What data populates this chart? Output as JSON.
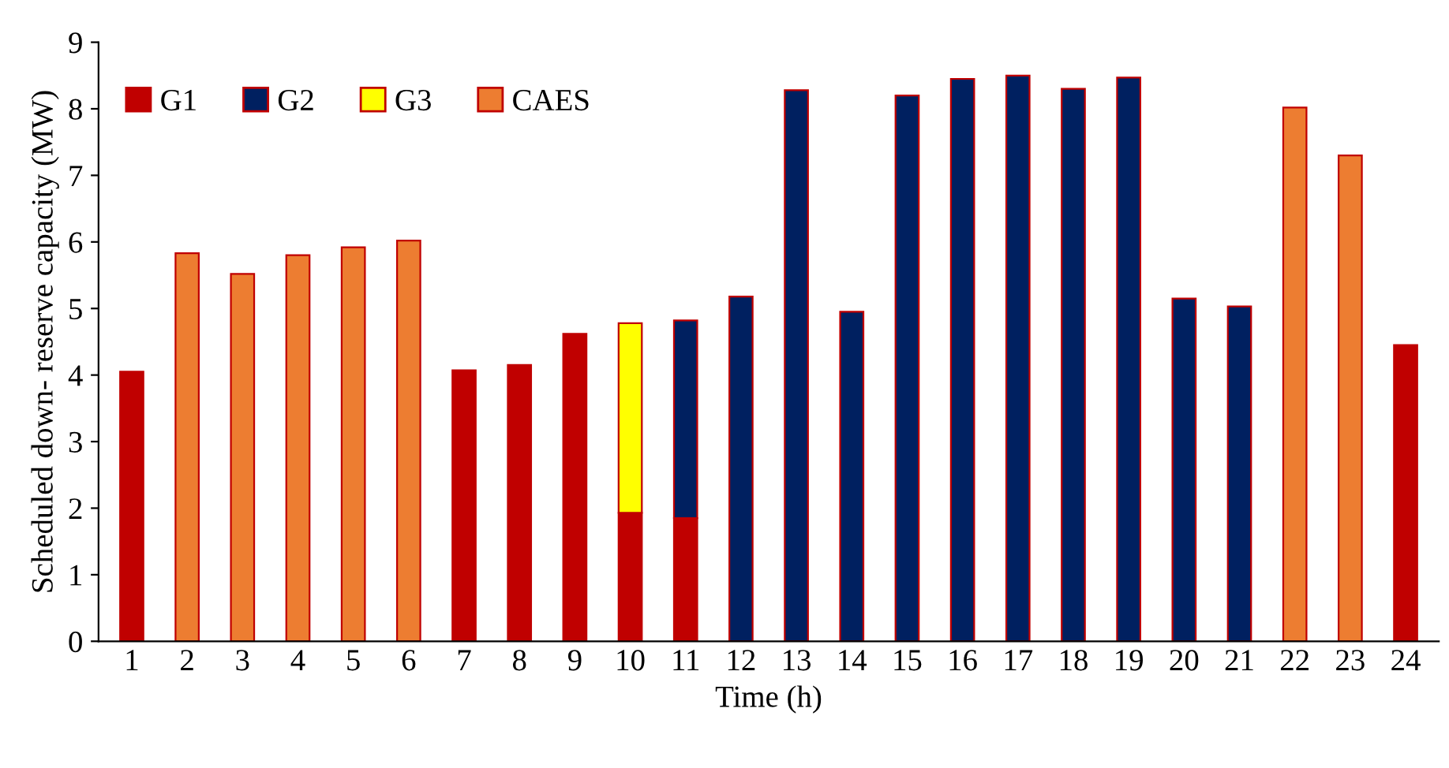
{
  "chart_data": {
    "type": "bar",
    "stacked": true,
    "xlabel": "Time (h)",
    "ylabel": "Scheduled down- reserve capacity (MW)",
    "categories": [
      "1",
      "2",
      "3",
      "4",
      "5",
      "6",
      "7",
      "8",
      "9",
      "10",
      "11",
      "12",
      "13",
      "14",
      "15",
      "16",
      "17",
      "18",
      "19",
      "20",
      "21",
      "22",
      "23",
      "24"
    ],
    "ylim": [
      0,
      9
    ],
    "yticks": [
      0,
      1,
      2,
      3,
      4,
      5,
      6,
      7,
      8,
      9
    ],
    "grid": false,
    "legend": "top left",
    "series": [
      {
        "name": "G1",
        "color": "#c00000",
        "values": [
          4.05,
          null,
          null,
          null,
          null,
          null,
          4.07,
          4.15,
          4.62,
          1.93,
          1.85,
          null,
          null,
          null,
          null,
          null,
          null,
          null,
          null,
          null,
          null,
          null,
          null,
          4.45
        ]
      },
      {
        "name": "G2",
        "color": "#002060",
        "values": [
          null,
          null,
          null,
          null,
          null,
          null,
          null,
          null,
          null,
          null,
          2.97,
          5.18,
          8.28,
          4.95,
          8.2,
          8.45,
          8.5,
          8.3,
          8.47,
          5.15,
          5.03,
          null,
          null,
          null
        ]
      },
      {
        "name": "G3",
        "color": "#ffff00",
        "values": [
          null,
          null,
          null,
          null,
          null,
          null,
          null,
          null,
          null,
          2.85,
          null,
          null,
          null,
          null,
          null,
          null,
          null,
          null,
          null,
          null,
          null,
          null,
          null,
          null
        ]
      },
      {
        "name": "CAES",
        "color": "#ed7d31",
        "values": [
          null,
          5.83,
          5.52,
          5.8,
          5.92,
          6.02,
          null,
          null,
          null,
          null,
          null,
          null,
          null,
          null,
          null,
          null,
          null,
          null,
          null,
          null,
          null,
          8.02,
          7.3,
          null
        ]
      }
    ]
  }
}
